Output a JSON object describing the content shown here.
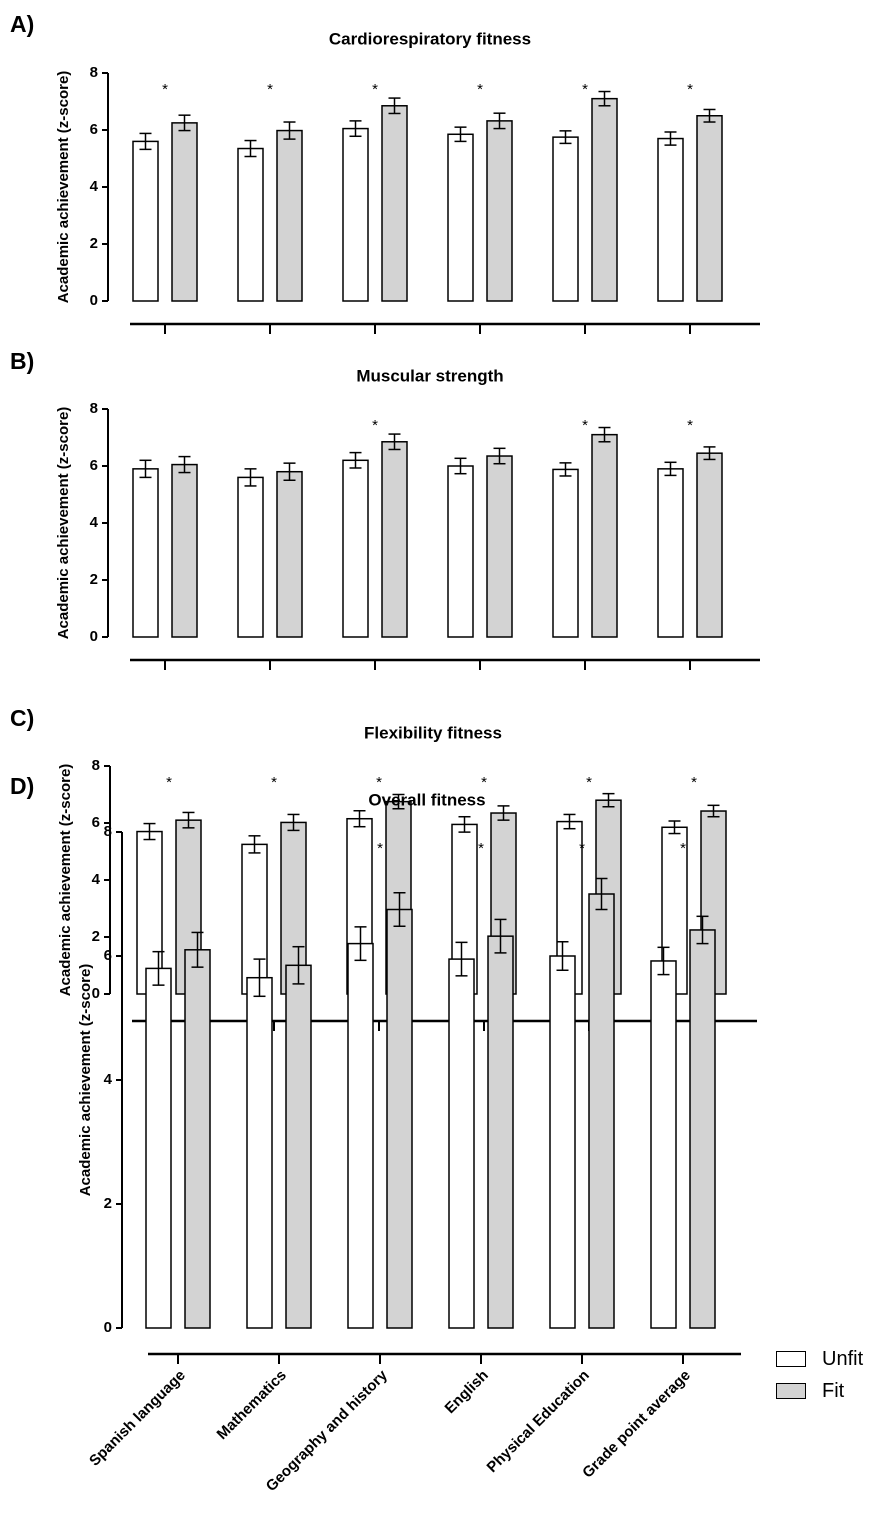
{
  "chart_data": [
    {
      "type": "bar",
      "panel_label": "A)",
      "title": "Cardiorespiratory fitness",
      "ylabel": "Academic achievement  (z-score)",
      "ylim": [
        0,
        8
      ],
      "yticks": [
        "0",
        "2",
        "4",
        "6",
        "8"
      ],
      "categories": [
        "Spanish language",
        "Mathematics",
        "Geography and history",
        "English",
        "Physical Education",
        "Grade point average"
      ],
      "series": [
        {
          "name": "Unfit",
          "values": [
            5.6,
            5.35,
            6.05,
            5.85,
            5.75,
            5.7
          ],
          "errors": [
            0.28,
            0.28,
            0.27,
            0.25,
            0.22,
            0.23
          ]
        },
        {
          "name": "Fit",
          "values": [
            6.25,
            5.98,
            6.85,
            6.32,
            7.1,
            6.5
          ],
          "errors": [
            0.27,
            0.3,
            0.27,
            0.27,
            0.25,
            0.22
          ]
        }
      ],
      "significance": [
        "*",
        "*",
        "*",
        "*",
        "*",
        "*"
      ]
    },
    {
      "type": "bar",
      "panel_label": "B)",
      "title": "Muscular strength",
      "ylabel": "Academic achievement  (z-score)",
      "ylim": [
        0,
        8
      ],
      "yticks": [
        "0",
        "2",
        "4",
        "6",
        "8"
      ],
      "categories": [
        "Spanish language",
        "Mathematics",
        "Geography and history",
        "English",
        "Physical Education",
        "Grade point average"
      ],
      "series": [
        {
          "name": "Unfit",
          "values": [
            5.9,
            5.6,
            6.2,
            6.0,
            5.88,
            5.9
          ],
          "errors": [
            0.3,
            0.3,
            0.27,
            0.27,
            0.23,
            0.23
          ]
        },
        {
          "name": "Fit",
          "values": [
            6.05,
            5.8,
            6.85,
            6.35,
            7.1,
            6.45
          ],
          "errors": [
            0.28,
            0.3,
            0.27,
            0.27,
            0.25,
            0.22
          ]
        }
      ],
      "significance": [
        "",
        "",
        "*",
        "",
        "*",
        "*"
      ]
    },
    {
      "type": "bar",
      "panel_label": "C)",
      "title": "Flexibility fitness",
      "ylabel": "Academic achievement  (z-score)",
      "ylim": [
        0,
        8
      ],
      "yticks": [
        "0",
        "2",
        "4",
        "6",
        "8"
      ],
      "categories": [
        "Spanish language",
        "Mathematics",
        "Geography and history",
        "English",
        "Physical Education",
        "Grade point average"
      ],
      "series": [
        {
          "name": "Unfit",
          "values": [
            5.7,
            5.25,
            6.15,
            5.95,
            6.05,
            5.85
          ],
          "errors": [
            0.28,
            0.3,
            0.28,
            0.27,
            0.25,
            0.22
          ]
        },
        {
          "name": "Fit",
          "values": [
            6.1,
            6.02,
            6.75,
            6.35,
            6.8,
            6.42
          ],
          "errors": [
            0.27,
            0.28,
            0.25,
            0.25,
            0.23,
            0.2
          ]
        }
      ],
      "significance": [
        "*",
        "*",
        "*",
        "*",
        "*",
        "*"
      ]
    },
    {
      "type": "bar",
      "panel_label": "D)",
      "title": "Overall fitness",
      "ylabel": "Academic achievement  (z-score)",
      "ylim": [
        0,
        8
      ],
      "yticks": [
        "0",
        "2",
        "4",
        "6",
        "8"
      ],
      "categories": [
        "Spanish language",
        "Mathematics",
        "Geography and history",
        "English",
        "Physical Education",
        "Grade point average"
      ],
      "series": [
        {
          "name": "Unfit",
          "values": [
            5.8,
            5.65,
            6.2,
            5.95,
            6.0,
            5.92
          ],
          "errors": [
            0.27,
            0.3,
            0.27,
            0.27,
            0.23,
            0.22
          ]
        },
        {
          "name": "Fit",
          "values": [
            6.1,
            5.85,
            6.75,
            6.32,
            7.0,
            6.42
          ],
          "errors": [
            0.28,
            0.3,
            0.27,
            0.27,
            0.25,
            0.22
          ]
        }
      ],
      "significance": [
        "",
        "",
        "*",
        "*",
        "*",
        "*"
      ]
    }
  ],
  "legend": {
    "placement": "bottom-right",
    "items": [
      {
        "label": "Unfit",
        "color": "#ffffff"
      },
      {
        "label": "Fit",
        "color": "#d3d3d3"
      }
    ]
  },
  "colors": {
    "unfit": "#ffffff",
    "fit": "#d3d3d3",
    "stroke": "#000000"
  }
}
